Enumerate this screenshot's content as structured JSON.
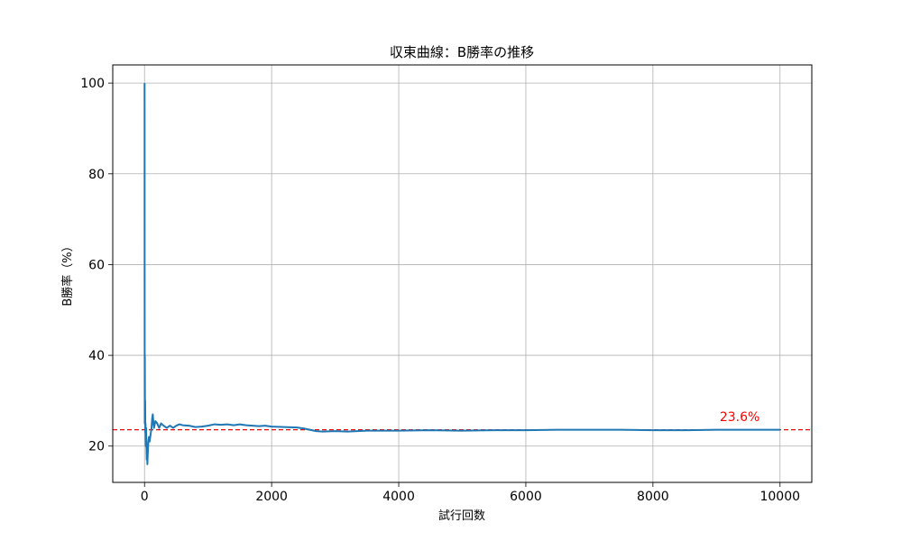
{
  "chart_data": {
    "type": "line",
    "title": "収束曲線：B勝率の推移",
    "xlabel": "試行回数",
    "ylabel": "B勝率（%）",
    "xlim": [
      -500,
      10500
    ],
    "ylim": [
      12,
      104
    ],
    "xticks": [
      0,
      2000,
      4000,
      6000,
      8000,
      10000
    ],
    "yticks": [
      20,
      40,
      60,
      80,
      100
    ],
    "grid": true,
    "colors": {
      "series": "#1f77b4",
      "reference": "#ff0000",
      "grid": "#b0b0b0"
    },
    "series": [
      {
        "x": [
          1,
          2,
          3,
          4,
          5,
          6,
          8,
          10,
          13,
          16,
          20,
          25,
          30,
          35,
          40,
          45,
          50,
          60,
          70,
          80,
          90,
          100,
          110,
          120,
          130,
          140,
          150,
          170,
          200,
          230,
          260,
          300,
          350,
          400,
          450,
          500,
          550,
          600,
          700,
          800,
          900,
          1000,
          1100,
          1200,
          1300,
          1400,
          1500,
          1600,
          1700,
          1800,
          1900,
          2000,
          2200,
          2400,
          2500,
          2600,
          2700,
          2800,
          3000,
          3200,
          3500,
          4000,
          4500,
          5000,
          5500,
          6000,
          6500,
          7000,
          7500,
          8000,
          8500,
          9000,
          9500,
          10000
        ],
        "y": [
          100,
          50,
          33.3,
          25,
          40,
          33.3,
          25,
          30,
          23,
          25,
          20,
          24,
          20,
          17,
          20,
          16,
          18,
          21,
          22,
          21,
          22,
          23,
          24,
          26,
          27,
          25,
          24,
          25.5,
          25,
          24,
          25,
          24.5,
          24,
          24.5,
          24,
          24.5,
          24.8,
          24.6,
          24.5,
          24.2,
          24.3,
          24.5,
          24.8,
          24.7,
          24.8,
          24.6,
          24.8,
          24.6,
          24.5,
          24.4,
          24.5,
          24.3,
          24.2,
          24.1,
          23.9,
          23.6,
          23.3,
          23.2,
          23.3,
          23.2,
          23.4,
          23.4,
          23.5,
          23.4,
          23.5,
          23.5,
          23.6,
          23.6,
          23.6,
          23.5,
          23.5,
          23.6,
          23.6,
          23.6
        ]
      }
    ],
    "reference_line": {
      "y": 23.6,
      "style": "dashed"
    },
    "annotations": [
      {
        "text": "23.6%",
        "x": 9050,
        "y": 25.5
      }
    ]
  }
}
